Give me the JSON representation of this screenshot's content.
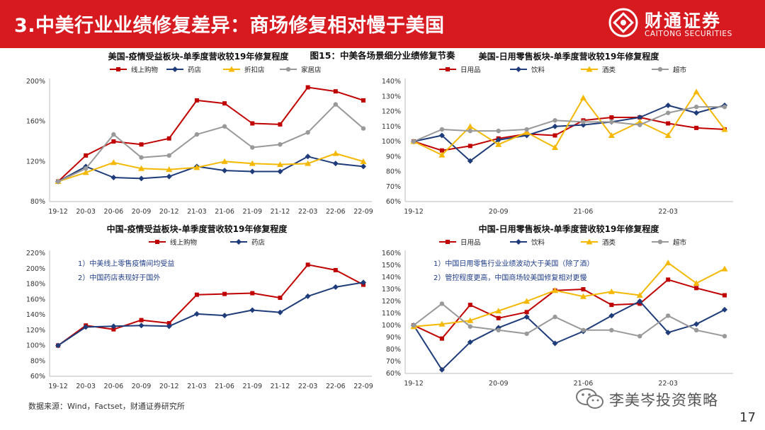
{
  "header": {
    "title": "3.中美行业业绩修复差异：商场修复相对慢于美国",
    "logo_cn": "财通证券",
    "logo_en": "CAITONG SECURITIES"
  },
  "figure_title": "图15：中美各场景细分业绩修复节奏",
  "source": "数据来源：Wind，Factset，财通证券研究所",
  "watermark": "李美岑投资策略",
  "page_number": "17",
  "colors": {
    "header_bg": "#d71920",
    "red": "#c00000",
    "navy": "#1f3c7a",
    "yellow": "#f5b800",
    "gray": "#999999"
  },
  "chart_data": [
    {
      "id": "us_epidemic",
      "type": "line",
      "title": "美国-疫情受益板块-单季度营收较19年修复程度",
      "categories": [
        "19-12",
        "20-03",
        "20-06",
        "20-09",
        "20-12",
        "21-03",
        "21-06",
        "21-09",
        "21-12",
        "22-03",
        "22-06",
        "22-09"
      ],
      "x_tick_labels": [
        "19-12",
        "20-03",
        "20-06",
        "20-09",
        "20-12",
        "21-03",
        "21-06",
        "21-09",
        "21-12",
        "22-03",
        "22-06",
        "22-09"
      ],
      "ylim": [
        80,
        200
      ],
      "y_ticks": [
        "80%",
        "120%",
        "160%",
        "200%"
      ],
      "series": [
        {
          "name": "线上购物",
          "color": "red",
          "marker": "square",
          "values": [
            100,
            126,
            140,
            137,
            143,
            181,
            178,
            158,
            157,
            194,
            190,
            181
          ]
        },
        {
          "name": "药店",
          "color": "navy",
          "marker": "diamond",
          "values": [
            100,
            115,
            104,
            103,
            105,
            115,
            111,
            110,
            110,
            125,
            118,
            115
          ]
        },
        {
          "name": "折扣店",
          "color": "yellow",
          "marker": "triangle",
          "values": [
            100,
            109,
            119,
            113,
            112,
            114,
            120,
            118,
            117,
            118,
            128,
            120
          ]
        },
        {
          "name": "家居店",
          "color": "gray",
          "marker": "circle",
          "values": [
            100,
            113,
            147,
            124,
            126,
            147,
            155,
            134,
            137,
            149,
            177,
            153
          ]
        }
      ]
    },
    {
      "id": "us_daily",
      "type": "line",
      "title": "美国-日用零售板块-单季度营收较19年修复程度",
      "categories": [
        "19-12",
        "20-03",
        "20-06",
        "20-09",
        "20-12",
        "21-03",
        "21-06",
        "21-09",
        "21-12",
        "22-03",
        "22-06",
        "22-09"
      ],
      "x_tick_labels": [
        "19-12",
        "",
        "",
        "20-09",
        "",
        "",
        "21-06",
        "",
        "",
        "22-03",
        "",
        ""
      ],
      "ylim": [
        60,
        140
      ],
      "y_ticks": [
        "60%",
        "70%",
        "80%",
        "90%",
        "100%",
        "110%",
        "120%",
        "130%",
        "140%"
      ],
      "series": [
        {
          "name": "日用品",
          "color": "red",
          "marker": "square",
          "values": [
            100,
            94,
            97,
            102,
            105,
            104,
            114,
            116,
            116,
            112,
            109,
            108
          ]
        },
        {
          "name": "饮料",
          "color": "navy",
          "marker": "diamond",
          "values": [
            100,
            104,
            87,
            101,
            104,
            110,
            111,
            113,
            116,
            124,
            119,
            124
          ]
        },
        {
          "name": "酒类",
          "color": "yellow",
          "marker": "triangle",
          "values": [
            100,
            91,
            110,
            98,
            106,
            96,
            129,
            104,
            113,
            104,
            133,
            108
          ]
        },
        {
          "name": "超市",
          "color": "gray",
          "marker": "circle",
          "values": [
            100,
            108,
            107,
            107,
            108,
            114,
            113,
            113,
            111,
            119,
            123,
            123
          ]
        }
      ]
    },
    {
      "id": "cn_epidemic",
      "type": "line",
      "title": "中国-疫情受益板块-单季度营收较19年修复程度",
      "categories": [
        "19-12",
        "20-03",
        "20-06",
        "20-09",
        "20-12",
        "21-03",
        "21-06",
        "21-09",
        "21-12",
        "22-03",
        "22-06",
        "22-09"
      ],
      "x_tick_labels": [
        "19-12",
        "20-03",
        "20-06",
        "20-09",
        "20-12",
        "21-03",
        "21-06",
        "21-09",
        "21-12",
        "22-03",
        "22-06",
        "22-09"
      ],
      "ylim": [
        60,
        220
      ],
      "y_ticks": [
        "60%",
        "80%",
        "100%",
        "120%",
        "140%",
        "160%",
        "180%",
        "200%",
        "220%"
      ],
      "notes": [
        "1）中美线上零售疫情间均受益",
        "2）中国药店表现好于国外"
      ],
      "series": [
        {
          "name": "线上购物",
          "color": "red",
          "marker": "square",
          "values": [
            100,
            126,
            121,
            133,
            129,
            166,
            167,
            168,
            162,
            205,
            198,
            179
          ]
        },
        {
          "name": "药店",
          "color": "navy",
          "marker": "diamond",
          "values": [
            100,
            124,
            125,
            126,
            125,
            141,
            139,
            146,
            143,
            164,
            176,
            182
          ]
        }
      ]
    },
    {
      "id": "cn_daily",
      "type": "line",
      "title": "中国-日用零售板块-单季度营收较19年修复程度",
      "categories": [
        "19-12",
        "20-03",
        "20-06",
        "20-09",
        "20-12",
        "21-03",
        "21-06",
        "21-09",
        "21-12",
        "22-03",
        "22-06",
        "22-09"
      ],
      "x_tick_labels": [
        "19-12",
        "",
        "",
        "20-09",
        "",
        "",
        "21-06",
        "",
        "",
        "22-03",
        "",
        ""
      ],
      "ylim": [
        60,
        160
      ],
      "y_ticks": [
        "60%",
        "70%",
        "80%",
        "90%",
        "100%",
        "110%",
        "120%",
        "130%",
        "140%",
        "150%",
        "160%"
      ],
      "notes": [
        "1）中国日用零售行业业绩波动大于美国（除了酒）",
        "2）管控程度更高，中国商场较美国修复相对更慢"
      ],
      "series": [
        {
          "name": "日用品",
          "color": "red",
          "marker": "square",
          "values": [
            100,
            89,
            117,
            106,
            111,
            129,
            130,
            117,
            118,
            138,
            131,
            125
          ]
        },
        {
          "name": "饮料",
          "color": "navy",
          "marker": "diamond",
          "values": [
            100,
            63,
            86,
            98,
            107,
            85,
            95,
            108,
            120,
            94,
            101,
            113
          ]
        },
        {
          "name": "酒类",
          "color": "yellow",
          "marker": "triangle",
          "values": [
            99,
            101,
            104,
            112,
            120,
            129,
            124,
            128,
            125,
            152,
            135,
            147
          ]
        },
        {
          "name": "超市",
          "color": "gray",
          "marker": "circle",
          "values": [
            100,
            118,
            99,
            96,
            93,
            107,
            96,
            96,
            91,
            108,
            96,
            91
          ]
        }
      ]
    }
  ]
}
